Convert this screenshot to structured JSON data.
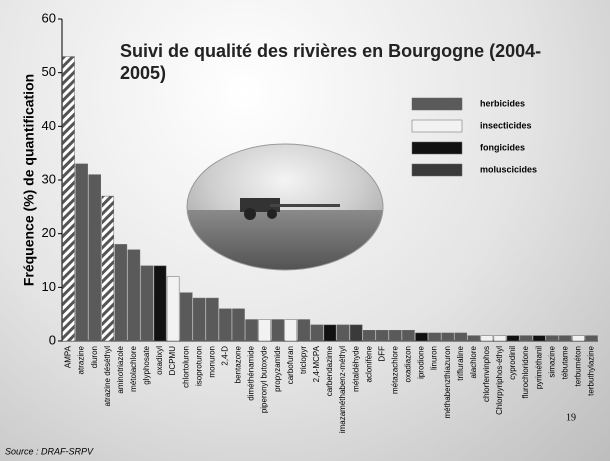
{
  "chart_data": {
    "type": "bar",
    "title": "Suivi de qualité des rivières en Bourgogne (2004-2005)",
    "y_label": "Fréquence (%) de quantification",
    "source": "Source : DRAF-SRPV",
    "page_number": "19",
    "categories": [
      "AMPA",
      "atrazine",
      "diuron",
      "atrazine déséthyl",
      "aminotriazole",
      "métolachlore",
      "glyphosate",
      "oxadixyl",
      "DCPMU",
      "chlortoluron",
      "isoproturon",
      "monuron",
      "2,4-D",
      "bentazone",
      "diméthénamide",
      "piperonyl butoxyde",
      "propyzamide",
      "carbofuran",
      "triclopyr",
      "2,4-MCPA",
      "carbendazime",
      "imazaméthabenz-méthyl",
      "métaldéhyde",
      "aclonifène",
      "DFF",
      "métazachlore",
      "oxadiazon",
      "iprodione",
      "linuron",
      "méthabenzthiazuron",
      "trifluraline",
      "alachlore",
      "chlorfenvinphos",
      "Chlorpyriphos-éthyl",
      "cyprodinil",
      "flurochloridone",
      "pyriméthanil",
      "simazine",
      "tébutame",
      "terbuméton",
      "terbuthylazine"
    ],
    "series": [
      {
        "name": "herbicides",
        "color": "#5a5a5a",
        "values": [
          53,
          33,
          31,
          27,
          18,
          17,
          14,
          null,
          null,
          9,
          8,
          8,
          6,
          6,
          4,
          null,
          4,
          null,
          4,
          3,
          null,
          3,
          null,
          2,
          2,
          2,
          2,
          null,
          1.5,
          1.5,
          1.5,
          1,
          null,
          null,
          null,
          1,
          null,
          1,
          1,
          null,
          1
        ]
      },
      {
        "name": "insecticides",
        "color": "#f2f2f2",
        "values": [
          null,
          null,
          null,
          null,
          null,
          null,
          null,
          null,
          12,
          null,
          null,
          null,
          null,
          null,
          null,
          4,
          null,
          4,
          null,
          null,
          null,
          null,
          null,
          null,
          null,
          null,
          null,
          null,
          null,
          null,
          null,
          null,
          1,
          1,
          null,
          null,
          null,
          null,
          null,
          1,
          null
        ]
      },
      {
        "name": "fongicides",
        "color": "#111111",
        "values": [
          null,
          null,
          null,
          null,
          null,
          null,
          null,
          14,
          null,
          null,
          null,
          null,
          null,
          null,
          null,
          null,
          null,
          null,
          null,
          null,
          3,
          null,
          null,
          null,
          null,
          null,
          null,
          1.5,
          null,
          null,
          null,
          null,
          null,
          null,
          1,
          null,
          1,
          null,
          null,
          null,
          null
        ]
      },
      {
        "name": "moluscicides",
        "color": "#3a3a3a",
        "values": [
          null,
          null,
          null,
          null,
          null,
          null,
          null,
          null,
          null,
          null,
          null,
          null,
          null,
          null,
          null,
          null,
          null,
          null,
          null,
          null,
          null,
          null,
          3,
          null,
          null,
          null,
          null,
          null,
          null,
          null,
          null,
          null,
          null,
          null,
          null,
          null,
          null,
          null,
          null,
          null,
          null
        ]
      }
    ],
    "hatched": [
      0,
      3
    ],
    "ylim": [
      0,
      60
    ],
    "yticks": [
      0,
      10,
      20,
      30,
      40,
      50,
      60
    ]
  }
}
